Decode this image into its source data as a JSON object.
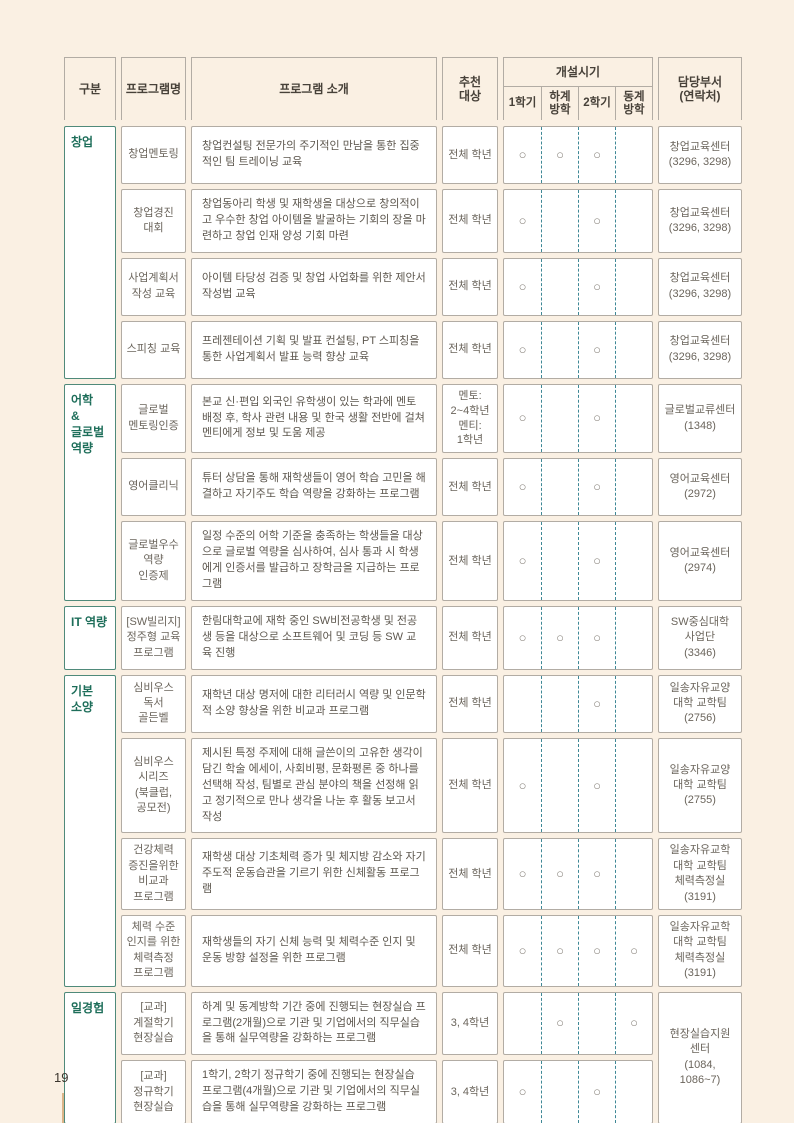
{
  "page": {
    "number": "19"
  },
  "table": {
    "headers": {
      "category": "구분",
      "program_name": "프로그램명",
      "program_intro": "프로그램 소개",
      "target": "추천\n대상",
      "schedule": "개설시기",
      "schedule_cols": [
        "1학기",
        "하계\n방학",
        "2학기",
        "동계\n방학"
      ],
      "department": "담당부서\n(연락처)"
    },
    "sections": [
      {
        "category": "창업",
        "rows": [
          {
            "name": "창업멘토링",
            "intro": "창업컨설팅 전문가의 주기적인 만남을 통한 집중적인 팀 트레이닝 교육",
            "target": "전체 학년",
            "schedule": [
              "○",
              "○",
              "○",
              ""
            ],
            "dept": "창업교육센터\n(3296, 3298)"
          },
          {
            "name": "창업경진\n대회",
            "intro": "창업동아리 학생 및 재학생을 대상으로 창의적이고 우수한 창업 아이템을 발굴하는 기회의 장을 마련하고 창업 인재 양성 기회 마련",
            "target": "전체 학년",
            "schedule": [
              "○",
              "",
              "○",
              ""
            ],
            "dept": "창업교육센터\n(3296, 3298)"
          },
          {
            "name": "사업계획서\n작성 교육",
            "intro": "아이템 타당성 검증 및 창업 사업화를 위한 제안서 작성법 교육",
            "target": "전체 학년",
            "schedule": [
              "○",
              "",
              "○",
              ""
            ],
            "dept": "창업교육센터\n(3296, 3298)"
          },
          {
            "name": "스피칭 교육",
            "intro": "프레젠테이션 기획 및 발표 컨설팅, PT 스피칭을 통한 사업계획서 발표 능력 향상 교육",
            "target": "전체 학년",
            "schedule": [
              "○",
              "",
              "○",
              ""
            ],
            "dept": "창업교육센터\n(3296, 3298)"
          }
        ]
      },
      {
        "category": "어학\n&\n글로벌\n역량",
        "rows": [
          {
            "name": "글로벌\n멘토링인증",
            "intro": "본교 신·편입 외국인 유학생이 있는 학과에 멘토 배정 후, 학사 관련 내용 및 한국 생활 전반에 걸쳐 멘티에게 정보 및 도움 제공",
            "target": "멘토:\n2~4학년\n멘티:\n1학년",
            "schedule": [
              "○",
              "",
              "○",
              ""
            ],
            "dept": "글로벌교류센터\n(1348)"
          },
          {
            "name": "영어클리닉",
            "intro": "튜터 상담을 통해 재학생들이 영어 학습 고민을 해결하고 자기주도 학습 역량을 강화하는 프로그램",
            "target": "전체 학년",
            "schedule": [
              "○",
              "",
              "○",
              ""
            ],
            "dept": "영어교육센터\n(2972)"
          },
          {
            "name": "글로벌우수\n역량\n인증제",
            "intro": "일정 수준의 어학 기준을 충족하는 학생들을 대상으로 글로벌 역량을 심사하여, 심사 통과 시 학생에게 인증서를 발급하고 장학금을 지급하는 프로그램",
            "target": "전체 학년",
            "schedule": [
              "○",
              "",
              "○",
              ""
            ],
            "dept": "영어교육센터\n(2974)"
          }
        ]
      },
      {
        "category": "IT 역량",
        "rows": [
          {
            "name": "[SW빌리지]\n정주형 교육\n프로그램",
            "intro": "한림대학교에 재학 중인 SW비전공학생 및 전공생 등을 대상으로 소프트웨어 및 코딩 등 SW 교육 진행",
            "target": "전체 학년",
            "schedule": [
              "○",
              "○",
              "○",
              ""
            ],
            "dept": "SW중심대학\n사업단\n(3346)"
          }
        ]
      },
      {
        "category": "기본\n소양",
        "rows": [
          {
            "name": "심비우스\n독서\n골든벨",
            "intro": "재학년 대상 명저에 대한 리터러시 역량 및 인문학적 소양 향상을 위한 비교과 프로그램",
            "target": "전체 학년",
            "schedule": [
              "",
              "",
              "○",
              ""
            ],
            "dept": "일송자유교양\n대학 교학팀\n(2756)"
          },
          {
            "name": "심비우스\n시리즈\n(북클럽,\n공모전)",
            "intro": "제시된 특정 주제에 대해 글쓴이의 고유한 생각이 담긴 학술 에세이, 사회비평, 문화평론 중 하나를 선택해 작성, 팀별로 관심 분야의 책을 선정해 읽고 정기적으로 만나 생각을 나눈 후 활동 보고서 작성",
            "target": "전체 학년",
            "schedule": [
              "○",
              "",
              "○",
              ""
            ],
            "dept": "일송자유교양\n대학 교학팀\n(2755)"
          },
          {
            "name": "건강체력\n증진을위한\n비교과\n프로그램",
            "intro": "재학생 대상 기초체력 증가 및 체지방 감소와 자기주도적 운동습관을 기르기 위한 신체활동 프로그램",
            "target": "전체 학년",
            "schedule": [
              "○",
              "○",
              "○",
              ""
            ],
            "dept": "일송자유교학\n대학 교학팀\n체력측정실(3191)"
          },
          {
            "name": "체력 수준\n인지를 위한\n체력측정\n프로그램",
            "intro": "재학생들의 자기 신체 능력 및 체력수준 인지 및 운동 방향 설정을 위한 프로그램",
            "target": "전체 학년",
            "schedule": [
              "○",
              "○",
              "○",
              "○"
            ],
            "dept": "일송자유교학\n대학 교학팀\n체력측정실(3191)"
          }
        ]
      },
      {
        "category": "일경험",
        "shared_dept": "현장실습지원\n센터\n(1084,\n1086~7)",
        "rows": [
          {
            "name": "[교과]\n계절학기\n현장실습",
            "intro": "하계 및 동계방학 기간 중에 진행되는 현장실습 프로그램(2개월)으로 기관 및 기업에서의 직무실습을 통해 실무역량을 강화하는 프로그램",
            "target": "3, 4학년",
            "schedule": [
              "",
              "○",
              "",
              "○"
            ]
          },
          {
            "name": "[교과]\n정규학기\n현장실습",
            "intro": "1학기, 2학기 정규학기 중에 진행되는 현장실습 프로그램(4개월)으로 기관 및 기업에서의 직무실습을 통해 실무역량을 강화하는 프로그램",
            "target": "3, 4학년",
            "schedule": [
              "○",
              "",
              "○",
              ""
            ]
          }
        ]
      }
    ]
  }
}
